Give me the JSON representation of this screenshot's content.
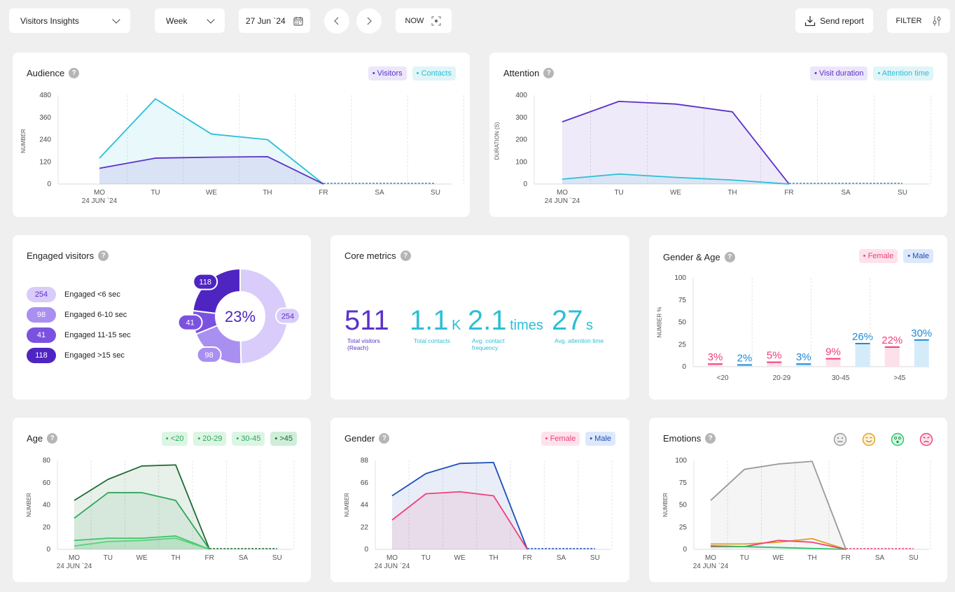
{
  "toolbar": {
    "view_select": "Visitors Insights",
    "period_select": "Week",
    "date": "27 Jun `24",
    "now_label": "NOW",
    "send_report": "Send report",
    "filter": "FILTER"
  },
  "days": [
    "MO",
    "TU",
    "WE",
    "TH",
    "FR",
    "SA",
    "SU"
  ],
  "first_date": "24 JUN `24",
  "audience": {
    "title": "Audience",
    "legend": [
      "• Visitors",
      "• Contacts"
    ],
    "ylabel": "NUMBER",
    "chart_data": {
      "type": "area",
      "ylim": [
        0,
        480
      ],
      "yticks": [
        0,
        120,
        240,
        360,
        480
      ],
      "series": [
        {
          "name": "Contacts",
          "color": "#2bbfd6",
          "values": [
            140,
            460,
            270,
            240,
            0
          ]
        },
        {
          "name": "Visitors",
          "color": "#5b32c8",
          "values": [
            85,
            140,
            145,
            148,
            0
          ]
        }
      ]
    }
  },
  "attention": {
    "title": "Attention",
    "legend": [
      "• Visit duration",
      "• Attention time"
    ],
    "ylabel": "DURATION (S)",
    "chart_data": {
      "type": "area",
      "ylim": [
        0,
        400
      ],
      "yticks": [
        0,
        100,
        200,
        300,
        400
      ],
      "series": [
        {
          "name": "Visit duration",
          "color": "#5b32c8",
          "values": [
            280,
            372,
            360,
            325,
            0
          ]
        },
        {
          "name": "Attention time",
          "color": "#2bbfd6",
          "values": [
            22,
            45,
            30,
            18,
            0
          ]
        }
      ]
    }
  },
  "engaged": {
    "title": "Engaged visitors",
    "center": "23%",
    "items": [
      {
        "value": "254",
        "label": "Engaged <6 sec",
        "color": "#d9ccfa",
        "text": "#5b32c8"
      },
      {
        "value": "98",
        "label": "Engaged 6-10 sec",
        "color": "#a98ff0",
        "text": "#ffffff"
      },
      {
        "value": "41",
        "label": "Engaged 11-15 sec",
        "color": "#7b52e0",
        "text": "#ffffff"
      },
      {
        "value": "118",
        "label": "Engaged >15 sec",
        "color": "#4f25c2",
        "text": "#ffffff"
      }
    ]
  },
  "core": {
    "title": "Core metrics",
    "metrics": [
      {
        "value": "511",
        "unit": "",
        "caption1": "Total visitors",
        "caption2": "(Reach)",
        "color": "#5b32c8"
      },
      {
        "value": "1.1",
        "unit": "K",
        "caption1": "Total contacts",
        "caption2": "",
        "color": "#2bbfd6"
      },
      {
        "value": "2.1",
        "unit": "times",
        "caption1": "Avg. contact",
        "caption2": "frequency",
        "color": "#2bbfd6"
      },
      {
        "value": "27",
        "unit": "s",
        "caption1": "Avg. attention time",
        "caption2": "",
        "color": "#2bbfd6"
      }
    ]
  },
  "gender_age": {
    "title": "Gender & Age",
    "legend": [
      "• Female",
      "• Male"
    ],
    "ylabel": "NUMBER %",
    "chart_data": {
      "type": "bar",
      "categories": [
        "<20",
        "20-29",
        "30-45",
        ">45"
      ],
      "ylim": [
        0,
        100
      ],
      "yticks": [
        0,
        25,
        50,
        75,
        100
      ],
      "series": [
        {
          "name": "Female",
          "color": "#f0407a",
          "values": [
            3,
            5,
            9,
            22
          ],
          "labels": [
            "3%",
            "5%",
            "9%",
            "22%"
          ]
        },
        {
          "name": "Male",
          "color": "#1f8ad6",
          "values": [
            2,
            3,
            26,
            30
          ],
          "labels": [
            "2%",
            "3%",
            "26%",
            "30%"
          ]
        }
      ]
    }
  },
  "age": {
    "title": "Age",
    "legend": [
      "• <20",
      "• 20-29",
      "• 30-45",
      "• >45"
    ],
    "ylabel": "NUMBER",
    "chart_data": {
      "type": "area",
      "ylim": [
        0,
        80
      ],
      "yticks": [
        0,
        20,
        40,
        60,
        80
      ],
      "series": [
        {
          "name": ">45",
          "color": "#1f6b35",
          "values": [
            44,
            63,
            75,
            76,
            0
          ]
        },
        {
          "name": "30-45",
          "color": "#2ea65a",
          "values": [
            28,
            51,
            51,
            44,
            0
          ]
        },
        {
          "name": "20-29",
          "color": "#42c46b",
          "values": [
            8,
            10,
            10,
            12,
            0
          ]
        },
        {
          "name": "<20",
          "color": "#5cd07e",
          "values": [
            3,
            7,
            8,
            10,
            0
          ]
        }
      ]
    }
  },
  "gender": {
    "title": "Gender",
    "legend": [
      "• Female",
      "• Male"
    ],
    "ylabel": "NUMBER",
    "chart_data": {
      "type": "area",
      "ylim": [
        0,
        88
      ],
      "yticks": [
        0,
        22,
        44,
        66,
        88
      ],
      "series": [
        {
          "name": "Male",
          "color": "#1d4fb8",
          "values": [
            53,
            75,
            85,
            86,
            0
          ]
        },
        {
          "name": "Female",
          "color": "#f0407a",
          "values": [
            29,
            55,
            57,
            53,
            0
          ]
        }
      ]
    }
  },
  "emotions": {
    "title": "Emotions",
    "ylabel": "NUMBER",
    "icons": [
      {
        "name": "neutral-face-icon",
        "glyph": "😐",
        "color": "#9a9a9a"
      },
      {
        "name": "happy-face-icon",
        "glyph": "☺",
        "color": "#e0a020"
      },
      {
        "name": "surprised-face-icon",
        "glyph": "😮",
        "color": "#2ec46a"
      },
      {
        "name": "angry-face-icon",
        "glyph": "😠",
        "color": "#f0407a"
      }
    ],
    "chart_data": {
      "type": "area",
      "ylim": [
        0,
        100
      ],
      "yticks": [
        0,
        25,
        50,
        75,
        100
      ],
      "series": [
        {
          "name": "Neutral",
          "color": "#999999",
          "values": [
            55,
            90,
            96,
            99,
            0
          ],
          "fill": true
        },
        {
          "name": "Happy",
          "color": "#e0a020",
          "values": [
            6,
            6,
            8,
            12,
            0
          ],
          "fill": false
        },
        {
          "name": "Angry",
          "color": "#f0407a",
          "values": [
            3,
            3,
            10,
            8,
            0
          ],
          "fill": false
        },
        {
          "name": "Surprised",
          "color": "#2ec46a",
          "values": [
            4,
            3,
            2,
            1,
            0
          ],
          "fill": false
        }
      ]
    }
  }
}
